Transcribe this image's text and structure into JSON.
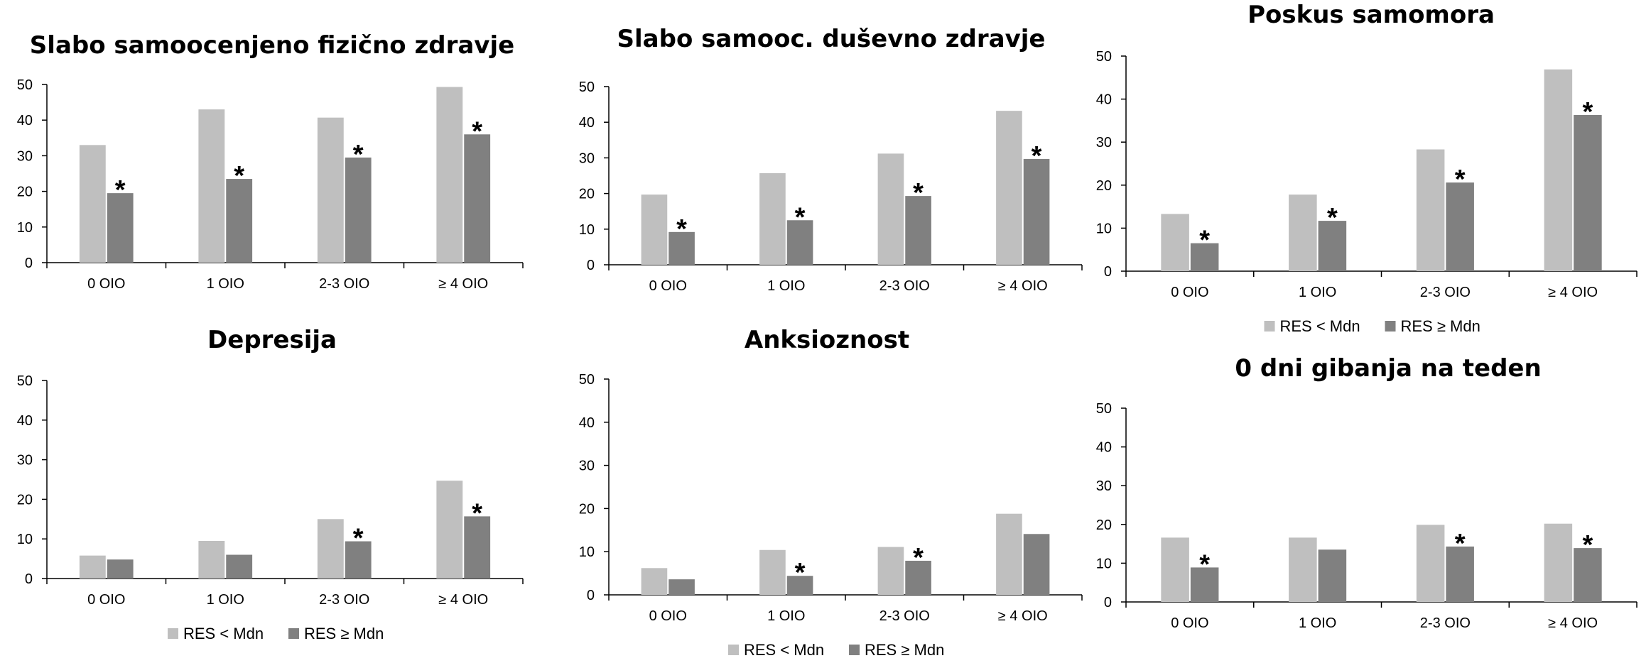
{
  "colors": {
    "light": "#bfbfbf",
    "dark": "#808080",
    "axis": "#000000"
  },
  "legend_entries": [
    "RES < Mdn",
    "RES ≥ Mdn"
  ],
  "chart_data": [
    {
      "type": "bar",
      "title": "Slabo samoocenjeno fizično zdravje",
      "categories": [
        "0 OIO",
        "1 OIO",
        "2-3 OIO",
        "≥ 4 OIO"
      ],
      "yticks": [
        "0",
        "10",
        "20",
        "30",
        "40",
        "50"
      ],
      "ylim": [
        0,
        50
      ],
      "series": [
        {
          "name": "RES < Mdn",
          "values": [
            33,
            43,
            40.7,
            49.3
          ]
        },
        {
          "name": "RES ≥ Mdn",
          "values": [
            19.5,
            23.5,
            29.5,
            36
          ]
        }
      ],
      "annotations": [
        "*",
        "*",
        "*",
        "*"
      ],
      "legend": "none"
    },
    {
      "type": "bar",
      "title": "Slabo samooc. duševno zdravje",
      "categories": [
        "0 OIO",
        "1 OIO",
        "2-3 OIO",
        "≥ 4 OIO"
      ],
      "yticks": [
        "0",
        "10",
        "20",
        "30",
        "40",
        "50"
      ],
      "ylim": [
        0,
        50
      ],
      "series": [
        {
          "name": "RES < Mdn",
          "values": [
            19.7,
            25.7,
            31.2,
            43.2
          ]
        },
        {
          "name": "RES ≥ Mdn",
          "values": [
            9.2,
            12.5,
            19.3,
            29.7
          ]
        }
      ],
      "annotations": [
        "*",
        "*",
        "*",
        "*"
      ],
      "legend": "none"
    },
    {
      "type": "bar",
      "title": "Poskus samomora",
      "categories": [
        "0 OIO",
        "1 OIO",
        "2-3 OIO",
        "≥ 4 OIO"
      ],
      "yticks": [
        "0",
        "10",
        "20",
        "30",
        "40",
        "50"
      ],
      "ylim": [
        0,
        50
      ],
      "series": [
        {
          "name": "RES < Mdn",
          "values": [
            13.3,
            17.8,
            28.3,
            46.9
          ]
        },
        {
          "name": "RES ≥ Mdn",
          "values": [
            6.5,
            11.7,
            20.6,
            36.3
          ]
        }
      ],
      "annotations": [
        "*",
        "*",
        "*",
        "*"
      ],
      "legend": "bottom"
    },
    {
      "type": "bar",
      "title": "Depresija",
      "categories": [
        "0 OIO",
        "1 OIO",
        "2-3 OIO",
        "≥ 4 OIO"
      ],
      "yticks": [
        "0",
        "10",
        "20",
        "30",
        "40",
        "50"
      ],
      "ylim": [
        0,
        50
      ],
      "series": [
        {
          "name": "RES < Mdn",
          "values": [
            5.8,
            9.5,
            15,
            24.7
          ]
        },
        {
          "name": "RES ≥ Mdn",
          "values": [
            4.8,
            6,
            9.4,
            15.7
          ]
        }
      ],
      "annotations": [
        "",
        "",
        "*",
        "*"
      ],
      "legend": "bottom"
    },
    {
      "type": "bar",
      "title": "Anksioznost",
      "categories": [
        "0 OIO",
        "1 OIO",
        "2-3 OIO",
        "≥ 4 OIO"
      ],
      "yticks": [
        "0",
        "10",
        "20",
        "30",
        "40",
        "50"
      ],
      "ylim": [
        0,
        50
      ],
      "series": [
        {
          "name": "RES < Mdn",
          "values": [
            6.2,
            10.4,
            11.1,
            18.8
          ]
        },
        {
          "name": "RES ≥ Mdn",
          "values": [
            3.6,
            4.4,
            7.9,
            14.1
          ]
        }
      ],
      "annotations": [
        "",
        "*",
        "*",
        ""
      ],
      "legend": "bottom"
    },
    {
      "type": "bar",
      "title": "0 dni gibanja na teden",
      "categories": [
        "0 OIO",
        "1 OIO",
        "2-3 OIO",
        "≥ 4 OIO"
      ],
      "yticks": [
        "0",
        "10",
        "20",
        "30",
        "40",
        "50"
      ],
      "ylim": [
        0,
        50
      ],
      "series": [
        {
          "name": "RES < Mdn",
          "values": [
            16.6,
            16.6,
            19.9,
            20.2
          ]
        },
        {
          "name": "RES ≥ Mdn",
          "values": [
            8.9,
            13.5,
            14.3,
            13.9
          ]
        }
      ],
      "annotations": [
        "*",
        "",
        "*",
        "*"
      ],
      "legend": "none"
    }
  ]
}
